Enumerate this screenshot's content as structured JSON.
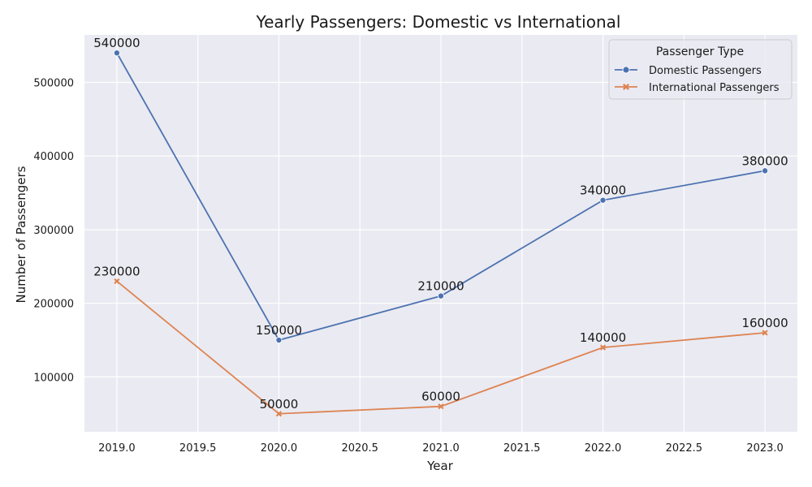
{
  "chart_data": {
    "type": "line",
    "title": "Yearly Passengers: Domestic vs International",
    "xlabel": "Year",
    "ylabel": "Number of Passengers",
    "x": [
      2019,
      2020,
      2021,
      2022,
      2023
    ],
    "xlim": [
      2018.8,
      2023.2
    ],
    "ylim": [
      25500,
      564500
    ],
    "x_ticks": [
      2019.0,
      2019.5,
      2020.0,
      2020.5,
      2021.0,
      2021.5,
      2022.0,
      2022.5,
      2023.0
    ],
    "x_tick_labels": [
      "2019.0",
      "2019.5",
      "2020.0",
      "2020.5",
      "2021.0",
      "2021.5",
      "2022.0",
      "2022.5",
      "2023.0"
    ],
    "y_ticks": [
      100000,
      200000,
      300000,
      400000,
      500000
    ],
    "y_tick_labels": [
      "100000",
      "200000",
      "300000",
      "400000",
      "500000"
    ],
    "grid": true,
    "legend": {
      "title": "Passenger Type",
      "position": "top-right"
    },
    "series": [
      {
        "name": "Domestic Passengers",
        "values": [
          540000,
          150000,
          210000,
          340000,
          380000
        ],
        "labels": [
          "540000",
          "150000",
          "210000",
          "340000",
          "380000"
        ],
        "color": "#4c72b0",
        "marker": "circle"
      },
      {
        "name": "International Passengers",
        "values": [
          230000,
          50000,
          60000,
          140000,
          160000
        ],
        "labels": [
          "230000",
          "50000",
          "60000",
          "140000",
          "160000"
        ],
        "color": "#dd8452",
        "marker": "x"
      }
    ],
    "background": "#eaeaf2",
    "grid_color": "#ffffff"
  }
}
